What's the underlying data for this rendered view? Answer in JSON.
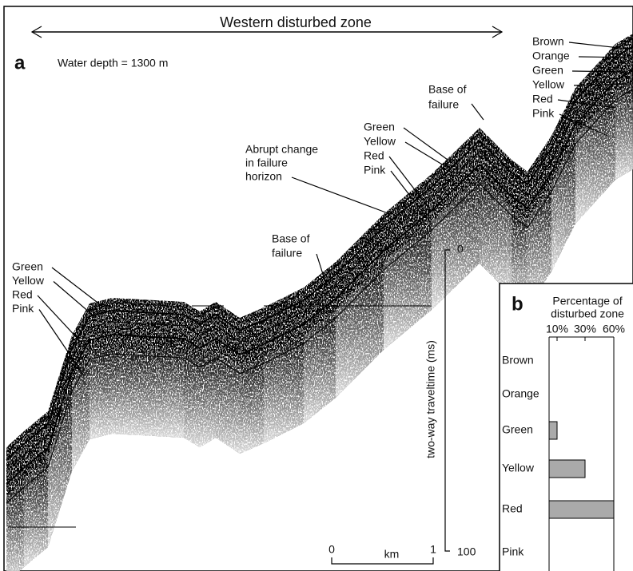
{
  "panel_a": {
    "title": "Western disturbed zone",
    "label": "a",
    "water_depth": "Water depth = 1300 m",
    "horizons_right": [
      "Brown",
      "Orange",
      "Green",
      "Yellow",
      "Red",
      "Pink"
    ],
    "base_of_failure_1": [
      "Base of",
      "failure"
    ],
    "horizons_middle": [
      "Green",
      "Yellow",
      "Red",
      "Pink"
    ],
    "abrupt_change": [
      "Abrupt change",
      "in failure",
      "horizon"
    ],
    "base_of_failure_2": [
      "Base of",
      "failure"
    ],
    "horizons_left": [
      "Green",
      "Yellow",
      "Red",
      "Pink"
    ],
    "time_scale": {
      "label": "two-way traveltime (ms)",
      "top": "0",
      "bottom": "100"
    },
    "distance_scale": {
      "start": "0",
      "unit": "km",
      "end": "1"
    }
  },
  "chart_data": {
    "type": "bar",
    "orientation": "horizontal",
    "panel_label": "b",
    "title": [
      "Percentage of",
      "disturbed zone"
    ],
    "categories": [
      "Brown",
      "Orange",
      "Green",
      "Yellow",
      "Red",
      "Pink"
    ],
    "values": [
      0,
      0,
      10,
      30,
      60,
      0
    ],
    "color": "#aaaaaa",
    "xlim": [
      0,
      60
    ],
    "xticks": [
      {
        "value": 10,
        "label": "10%"
      },
      {
        "value": 30,
        "label": "30%"
      },
      {
        "value": 60,
        "label": "60%"
      }
    ]
  }
}
